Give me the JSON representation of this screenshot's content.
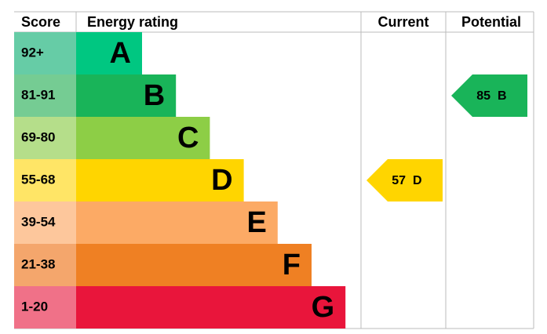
{
  "header": {
    "score": "Score",
    "energy_rating": "Energy rating",
    "current": "Current",
    "potential": "Potential"
  },
  "bands": [
    {
      "score": "92+",
      "letter": "A",
      "color": "#00c781",
      "light_color": "#66cca6"
    },
    {
      "score": "81-91",
      "letter": "B",
      "color": "#19b459",
      "light_color": "#75cc93"
    },
    {
      "score": "69-80",
      "letter": "C",
      "color": "#8dce46",
      "light_color": "#b5de8a"
    },
    {
      "score": "55-68",
      "letter": "D",
      "color": "#ffd500",
      "light_color": "#ffe566"
    },
    {
      "score": "39-54",
      "letter": "E",
      "color": "#fcaa65",
      "light_color": "#fdc79c"
    },
    {
      "score": "21-38",
      "letter": "F",
      "color": "#ef8023",
      "light_color": "#f4a66c"
    },
    {
      "score": "1-20",
      "letter": "G",
      "color": "#e9153b",
      "light_color": "#f07188"
    }
  ],
  "current": {
    "value": 57,
    "letter": "D"
  },
  "potential": {
    "value": 85,
    "letter": "B"
  }
}
